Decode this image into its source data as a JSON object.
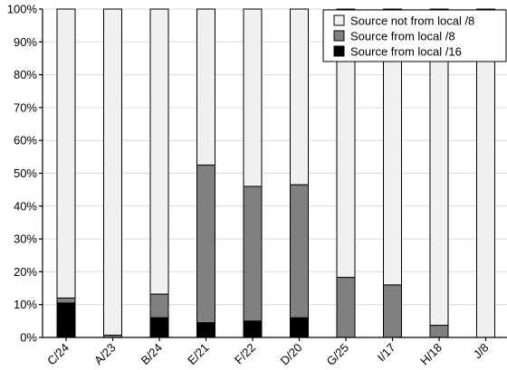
{
  "chart_data": {
    "type": "bar",
    "stacked": true,
    "title": "",
    "xlabel": "",
    "ylabel": "",
    "ylim": [
      0,
      100
    ],
    "y_ticks": [
      "0%",
      "10%",
      "20%",
      "30%",
      "40%",
      "50%",
      "60%",
      "70%",
      "80%",
      "90%",
      "100%"
    ],
    "y_tick_values": [
      0,
      10,
      20,
      30,
      40,
      50,
      60,
      70,
      80,
      90,
      100
    ],
    "grid": true,
    "legend_position": "top-right",
    "categories": [
      "C/24",
      "A/23",
      "B/24",
      "E/21",
      "F/22",
      "D/20",
      "G/25",
      "I/17",
      "H/18",
      "J/8"
    ],
    "series": [
      {
        "name": "Source from local /16",
        "color": "#000000",
        "values": [
          10.5,
          0,
          6,
          4.5,
          5,
          6,
          0,
          0,
          0,
          0
        ]
      },
      {
        "name": "Source from local /8",
        "color": "#808080",
        "values": [
          1.5,
          0.7,
          7.2,
          48,
          41,
          40.5,
          18.3,
          16,
          3.7,
          0
        ]
      },
      {
        "name": "Source not from local /8",
        "color": "#f0f0f0",
        "values": [
          88,
          99.3,
          86.8,
          47.5,
          54,
          53.5,
          81.7,
          84,
          96.3,
          100
        ]
      }
    ],
    "legend_order": [
      "Source not from local /8",
      "Source from local /8",
      "Source from local /16"
    ]
  }
}
